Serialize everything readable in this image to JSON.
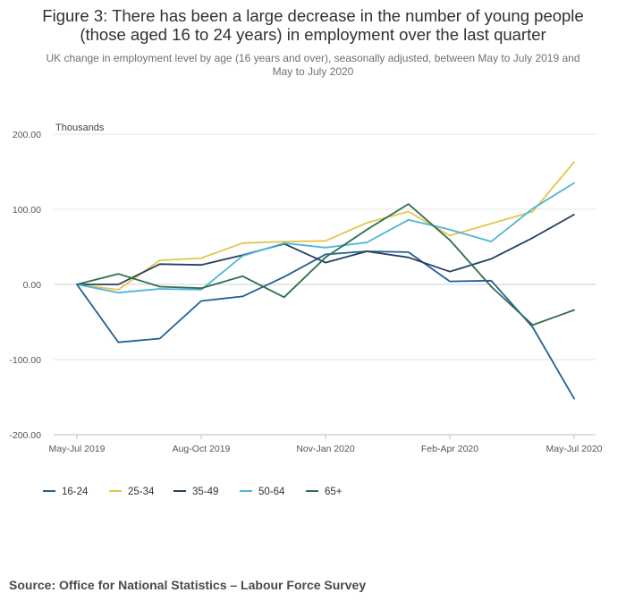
{
  "header": {
    "title_line1": "Figure 3: There has been a large decrease in the number of young people",
    "title_line2": "(those aged 16 to 24 years) in employment over the last quarter",
    "subtitle_line1": "UK change in employment level by age (16 years and over), seasonally adjusted, between May to July 2019 and",
    "subtitle_line2": "May to July 2020"
  },
  "footer": {
    "source": "Source: Office for National Statistics – Labour Force Survey"
  },
  "chart_data": {
    "type": "line",
    "y_unit_label": "Thousands",
    "x": [
      "May-Jul 2019",
      "Jun-Aug 2019",
      "Jul-Sep 2019",
      "Aug-Oct 2019",
      "Sep-Nov 2019",
      "Oct-Dec 2019",
      "Nov-Jan 2020",
      "Dec-Feb 2020",
      "Jan-Mar 2020",
      "Feb-Apr 2020",
      "Mar-May 2020",
      "Apr-Jun 2020",
      "May-Jul 2020"
    ],
    "x_tick_labels": [
      "May-Jul 2019",
      "Aug-Oct 2019",
      "Nov-Jan 2020",
      "Feb-Apr 2020",
      "May-Jul 2020"
    ],
    "x_tick_indices": [
      0,
      3,
      6,
      9,
      12
    ],
    "y_ticks": [
      -200,
      -100,
      0,
      100,
      200
    ],
    "y_tick_labels": [
      "-200.00",
      "-100.00",
      "0.00",
      "100.00",
      "200.00"
    ],
    "ylim": [
      -200,
      200
    ],
    "grid": "horizontal",
    "legend_position": "bottom-left",
    "series": [
      {
        "name": "16-24",
        "color": "#206095",
        "values": [
          0,
          -77,
          -72,
          -22,
          -16,
          10,
          40,
          44,
          43,
          4,
          5,
          -57,
          -152
        ]
      },
      {
        "name": "25-34",
        "color": "#E5C54A",
        "values": [
          0,
          -7,
          32,
          35,
          55,
          57,
          58,
          82,
          97,
          65,
          81,
          97,
          163
        ]
      },
      {
        "name": "35-49",
        "color": "#27405F",
        "values": [
          0,
          0,
          27,
          26,
          39,
          54,
          29,
          44,
          36,
          17,
          34,
          62,
          93
        ]
      },
      {
        "name": "50-64",
        "color": "#4DB6D8",
        "values": [
          0,
          -11,
          -6,
          -7,
          38,
          55,
          49,
          56,
          86,
          73,
          57,
          101,
          135
        ]
      },
      {
        "name": "65+",
        "color": "#2E6F4F",
        "values": [
          0,
          14,
          -3,
          -5,
          11,
          -17,
          36,
          73,
          107,
          59,
          -3,
          -54,
          -34
        ]
      }
    ]
  }
}
